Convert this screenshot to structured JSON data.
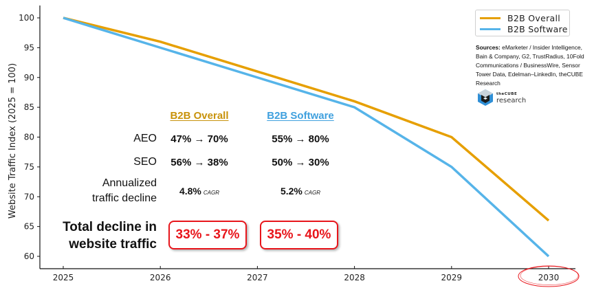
{
  "chart_data": {
    "type": "line",
    "title": "",
    "xlabel": "",
    "ylabel": "Website Traffic Index (2025 = 100)",
    "x": [
      2025,
      2026,
      2027,
      2028,
      2029,
      2030
    ],
    "x_tick_labels": [
      "2025",
      "2026",
      "2027",
      "2028",
      "2029",
      "2030"
    ],
    "y_ticks": [
      60,
      65,
      70,
      75,
      80,
      85,
      90,
      95,
      100
    ],
    "y_tick_labels": [
      "60",
      "65",
      "70",
      "75",
      "80",
      "85",
      "90",
      "95",
      "100"
    ],
    "xlim": [
      2024.76,
      2030.3
    ],
    "ylim": [
      58,
      102
    ],
    "grid": false,
    "legend_position": "top-right",
    "series": [
      {
        "name": "B2B Overall",
        "color": "#E69F00",
        "values": [
          100,
          96,
          91,
          86,
          80,
          66
        ]
      },
      {
        "name": "B2B Software",
        "color": "#56B4E9",
        "values": [
          100,
          95,
          90,
          85,
          75,
          60
        ]
      }
    ],
    "highlighted_tick": "2030",
    "highlight_color": "#e8151b"
  },
  "legend": {
    "items": [
      {
        "label": "B2B Overall",
        "color": "#E69F00"
      },
      {
        "label": "B2B Software",
        "color": "#56B4E9"
      }
    ]
  },
  "sources": {
    "heading": "Sources:",
    "text": " eMarketer / Insider Intelligence, Bain & Company, G2, TrustRadius, 10Fold Communications / BusinessWire, Sensor Tower Data, Edelman–LinkedIn, theCUBE Research"
  },
  "logo": {
    "small": "theCUBE",
    "big": "research"
  },
  "table": {
    "columns": [
      {
        "label": "B2B Overall",
        "color": "#C8920A"
      },
      {
        "label": "B2B Software",
        "color": "#3FA0DE"
      }
    ],
    "rows": [
      {
        "label": "AEO",
        "values": [
          "47% → 70%",
          "55% → 80%"
        ]
      },
      {
        "label": "SEO",
        "values": [
          "56% → 38%",
          "50% → 30%"
        ]
      },
      {
        "label_line1": "Annualized",
        "label_line2": "traffic decline",
        "values": [
          "4.8%",
          "5.2%"
        ],
        "suffix": "CAGR"
      }
    ]
  },
  "total": {
    "label_line1": "Total decline in",
    "label_line2": "website traffic",
    "values": [
      "33% - 37%",
      "35% - 40%"
    ]
  }
}
